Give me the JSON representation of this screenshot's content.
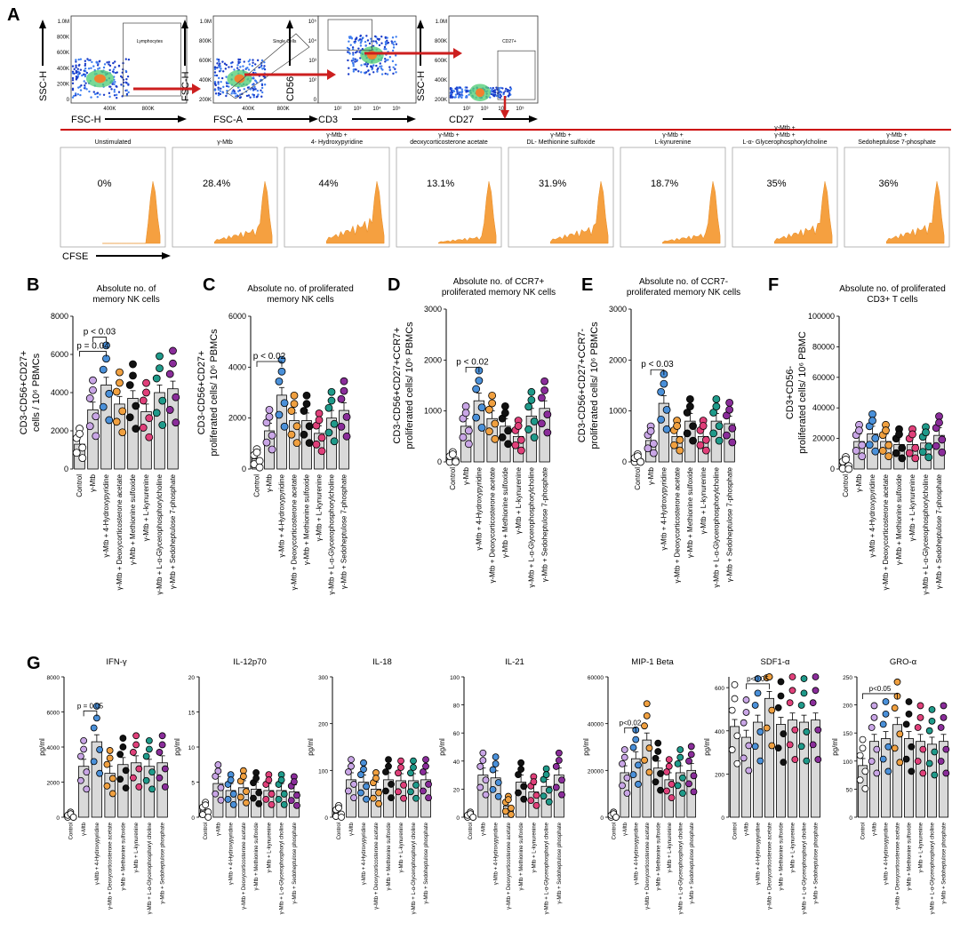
{
  "panel_letters": [
    "A",
    "B",
    "C",
    "D",
    "E",
    "F",
    "G"
  ],
  "colors": {
    "control": "#ffffff",
    "ymtb": "#c9a6e6",
    "hydroxypyridine": "#4a90d9",
    "deoxycort": "#f0a040",
    "methionine": "#111111",
    "kynurenine": "#e0407a",
    "glycero": "#1f9a8a",
    "sedo": "#8a2d9a",
    "bar": "#d9d9d9",
    "histogram": "#f5a040",
    "redline": "#cc0000",
    "arrow": "#cc1f1f"
  },
  "flow": {
    "gates": [
      {
        "ylabel": "SSC-H",
        "xlabel": "FSC-H",
        "gate": "Lymphocytes",
        "yticks": [
          "1.0M",
          "800K",
          "600K",
          "400K",
          "200K",
          "0"
        ],
        "xticks": [
          "400K",
          "800K"
        ]
      },
      {
        "ylabel": "FSC-H",
        "xlabel": "FSC-A",
        "gate": "Single Cells",
        "yticks": [
          "1.0M",
          "800K",
          "600K",
          "400K",
          "200K"
        ],
        "xticks": [
          "400K",
          "800K"
        ]
      },
      {
        "ylabel": "CD56",
        "xlabel": "CD3",
        "gate": "",
        "yticks": [
          "10⁵",
          "10⁴",
          "10³",
          "10²",
          "0"
        ],
        "xticks": [
          "10²",
          "10³",
          "10⁴",
          "10⁵"
        ]
      },
      {
        "ylabel": "SSC-H",
        "xlabel": "CD27",
        "gate": "CD27+",
        "yticks": [
          "1.0M",
          "800K",
          "600K",
          "400K",
          "200K"
        ],
        "xticks": [
          "10²",
          "10³",
          "10⁴",
          "10⁵"
        ]
      }
    ],
    "histograms": [
      {
        "title": "Unstimulated",
        "pct": "0%"
      },
      {
        "title": "γ-Mtb",
        "pct": "28.4%"
      },
      {
        "title": "γ-Mtb + 4- Hydroxypyridine",
        "pct": "44%"
      },
      {
        "title": "γ-Mtb + deoxycorticosterone acetate",
        "pct": "13.1%"
      },
      {
        "title": "γ-Mtb + DL- Methionine sulfoxide",
        "pct": "31.9%"
      },
      {
        "title": "γ-Mtb + L-kynurenine",
        "pct": "18.7%"
      },
      {
        "title": "γ-Mtb +γ-Mtb + L-α- Glycerophosphorylcholine",
        "pct": "35%"
      },
      {
        "title": "γ-Mtb + Sedoheptulose 7-phosphate",
        "pct": "36%"
      }
    ],
    "cfse_label": "CFSE"
  },
  "chart_data": [
    {
      "type": "bar",
      "panel": "B",
      "title": "Absolute no. of memory NK cells",
      "ylabel": "CD3-CD56+CD27+ cells / 10⁶ PBMCs",
      "ylim": [
        0,
        8000
      ],
      "yticks": [
        0,
        2000,
        4000,
        6000,
        8000
      ],
      "categories": [
        "Control",
        "γ-Mtb",
        "γ-Mtb + 4-Hydroxypyridine",
        "γ-Mtb + Deoxycorticosterone acetate",
        "γ-Mtb + Methionine sulfoxide",
        "γ-Mtb + L-kynurenine",
        "γ-Mtb + L-α-Glycerophosphorylcholine",
        "γ-Mtb + Sedoheptulose 7-phosphate"
      ],
      "values": [
        1300,
        3100,
        4400,
        3400,
        3700,
        3000,
        4000,
        4200
      ],
      "annotations": [
        {
          "text": "p = 0.04",
          "from": 0,
          "to": 2
        },
        {
          "text": "p < 0.03",
          "from": 1,
          "to": 2
        }
      ]
    },
    {
      "type": "bar",
      "panel": "C",
      "title": "Absolute no. of proliferated memory NK cells",
      "ylabel": "CD3-CD56+CD27+ proliferated cells/ 10⁶ PBMCs",
      "ylim": [
        0,
        6000
      ],
      "yticks": [
        0,
        2000,
        4000,
        6000
      ],
      "categories": [
        "Control",
        "γ-Mtb",
        "γ-Mtb + 4-Hydroxypyridine",
        "γ-Mtb + Deoxycorticosterone acetate",
        "γ-Mtb + Methionine sulfoxide",
        "γ-Mtb + L-kynurenine",
        "γ-Mtb + L-α-Glycerophosphorylcholine",
        "γ-Mtb + Sedoheptulose 7-phosphate"
      ],
      "values": [
        400,
        1500,
        2900,
        1900,
        1900,
        1400,
        2000,
        2300
      ],
      "annotations": [
        {
          "text": "p < 0.02",
          "from": 0,
          "to": 2
        }
      ]
    },
    {
      "type": "bar",
      "panel": "D",
      "title": "Absolute no. of CCR7+ proliferated memory NK cells",
      "ylabel": "CD3-CD56+CD27+CCR7+ proliferated cells/ 10⁶ PBMCs",
      "ylim": [
        0,
        3000
      ],
      "yticks": [
        0,
        1000,
        2000,
        3000
      ],
      "categories": [
        "Control",
        "γ-Mtb",
        "γ-Mtb + 4-Hydroxypyridine",
        "γ-Mtb + Deoxycorticosterone acetate",
        "γ-Mtb + Methionine sulfoxide",
        "γ-Mtb + L-kynurenine",
        "γ-Mtb + L-α-Glycerophosphorylcholine",
        "γ-Mtb + Sedoheptulose 7-phosphate"
      ],
      "values": [
        60,
        700,
        1200,
        850,
        700,
        500,
        900,
        1050
      ],
      "annotations": [
        {
          "text": "p < 0.02",
          "from": 1,
          "to": 2
        }
      ]
    },
    {
      "type": "bar",
      "panel": "E",
      "title": "Absolute no. of CCR7- proliferated memory NK cells",
      "ylabel": "CD3-CD56+CD27+CCR7- proliferated cells/ 10⁶ PBMCs",
      "ylim": [
        0,
        3000
      ],
      "yticks": [
        0,
        1000,
        2000,
        3000
      ],
      "categories": [
        "Control",
        "γ-Mtb",
        "γ-Mtb + 4-Hydroxypyridine",
        "γ-Mtb + Deoxycorticosterone acetate",
        "γ-Mtb + Methionine sulfoxide",
        "γ-Mtb + L-kynurenine",
        "γ-Mtb + L-α-Glycerophosphorylcholine",
        "γ-Mtb + Sedoheptulose 7-phosphate"
      ],
      "values": [
        30,
        420,
        1150,
        500,
        800,
        500,
        800,
        750
      ],
      "annotations": [
        {
          "text": "p < 0.03",
          "from": 1,
          "to": 2
        }
      ]
    },
    {
      "type": "bar",
      "panel": "F",
      "title": "Absolute no. of proliferated CD3+ T cells",
      "ylabel": "CD3+CD56- proliferated cells/ 10⁶ PBMC",
      "ylim": [
        0,
        100000
      ],
      "yticks": [
        0,
        20000,
        40000,
        60000,
        80000,
        100000
      ],
      "categories": [
        "Control",
        "γ-Mtb",
        "γ-Mtb + 4-Hydroxypyridine",
        "γ-Mtb + Deoxycorticosterone acetate",
        "γ-Mtb + Methionine sulfoxide",
        "γ-Mtb + L-kynurenine",
        "γ-Mtb + L-α-Glycerophosphorylcholine",
        "γ-Mtb + Sedoheptulose 7-phosphate"
      ],
      "values": [
        3000,
        18000,
        23000,
        18000,
        16000,
        16000,
        17000,
        22000
      ],
      "annotations": []
    },
    {
      "type": "bar",
      "panel": "G",
      "title": "IFN-γ",
      "ylabel": "pg/ml",
      "ylim": [
        0,
        8000
      ],
      "yticks": [
        0,
        2000,
        4000,
        6000,
        8000
      ],
      "categories": [
        "Control",
        "γ-Mtb",
        "γ-Mtb + 4-Hydroxypyridine",
        "γ-Mtb + Deoxycorticosterone acetate",
        "γ-Mtb + Methionine sulfoxide",
        "γ-Mtb + L-kynurenine",
        "γ-Mtb + L-α-Glycerophosphoryl choline",
        "γ-Mtb + Sedoheptulose phosphate"
      ],
      "values": [
        0,
        2900,
        4300,
        2500,
        3000,
        3100,
        2900,
        3100
      ],
      "annotations": [
        {
          "text": "p = 0.05",
          "from": 1,
          "to": 2
        }
      ]
    },
    {
      "type": "bar",
      "panel": "G",
      "title": "IL-12p70",
      "ylabel": "pg/ml",
      "ylim": [
        0,
        20
      ],
      "yticks": [
        0,
        5,
        10,
        15,
        20
      ],
      "categories": [
        "Control",
        "γ-Mtb",
        "γ-Mtb + 4-Hydroxypyridine",
        "γ-Mtb + Deoxycorticosterone acetate",
        "γ-Mtb + Methionine sulfoxide",
        "γ-Mtb + L-kynurenine",
        "γ-Mtb + L-α-Glycerophosphoryl choline",
        "γ-Mtb + Sedoheptulose phosphate"
      ],
      "values": [
        1,
        4.8,
        3.8,
        4.2,
        4.0,
        3.8,
        3.8,
        3.6
      ],
      "annotations": []
    },
    {
      "type": "bar",
      "panel": "G",
      "title": "IL-18",
      "ylabel": "pg/ml",
      "ylim": [
        0,
        300
      ],
      "yticks": [
        0,
        100,
        200,
        300
      ],
      "categories": [
        "Control",
        "γ-Mtb",
        "γ-Mtb + 4-Hydroxypyridine",
        "γ-Mtb + Deoxycorticosterone acetate",
        "γ-Mtb + Methionine sulfoxide",
        "γ-Mtb + L-kynurenine",
        "γ-Mtb + L-α-Glycerophosphoryl choline",
        "γ-Mtb + Sedoheptulose phosphate"
      ],
      "values": [
        10,
        80,
        75,
        60,
        80,
        78,
        78,
        80
      ],
      "annotations": []
    },
    {
      "type": "bar",
      "panel": "G",
      "title": "IL-21",
      "ylabel": "pg/ml",
      "ylim": [
        0,
        100
      ],
      "yticks": [
        0,
        20,
        40,
        60,
        80,
        100
      ],
      "categories": [
        "Control",
        "γ-Mtb",
        "γ-Mtb + 4-Hydroxypyridine",
        "γ-Mtb + Deoxycorticosterone acetate",
        "γ-Mtb + Methionine sulfoxide",
        "γ-Mtb + L-kynurenine",
        "γ-Mtb + L-α-Glycerophosphoryl choline",
        "γ-Mtb + Sedoheptulose phosphate"
      ],
      "values": [
        0,
        30,
        28,
        8,
        25,
        18,
        22,
        30
      ],
      "annotations": []
    },
    {
      "type": "bar",
      "panel": "G",
      "title": "MIP-1 Beta",
      "ylabel": "pg/ml",
      "ylim": [
        0,
        60000
      ],
      "yticks": [
        0,
        20000,
        40000,
        60000
      ],
      "categories": [
        "Control",
        "γ-Mtb",
        "γ-Mtb + 4-Hydroxypyridine",
        "γ-Mtb + Deoxycorticosterone acetate",
        "γ-Mtb + Methionine sulfoxide",
        "γ-Mtb + L-kynurenine",
        "γ-Mtb + L-α-Glycerophosphoryl choline",
        "γ-Mtb + Sedoheptulose phosphate"
      ],
      "values": [
        0,
        19000,
        25000,
        33000,
        21000,
        16000,
        19000,
        20000
      ],
      "annotations": [
        {
          "text": "p<0.02",
          "from": 1,
          "to": 2
        }
      ]
    },
    {
      "type": "bar",
      "panel": "G",
      "title": "SDF1-α",
      "ylabel": "pg/ml",
      "ylim": [
        0,
        650
      ],
      "yticks": [
        0,
        200,
        400,
        600
      ],
      "categories": [
        "Control",
        "γ-Mtb",
        "γ-Mtb + 4-Hydroxypyridine",
        "γ-Mtb + Deoxycorticosterone acetate",
        "γ-Mtb + Methionine sulfoxide",
        "γ-Mtb + L-kynurenine",
        "γ-Mtb + L-α-Glycerophosphoryl choline",
        "γ-Mtb + Sedoheptulose phosphate"
      ],
      "values": [
        420,
        370,
        440,
        550,
        430,
        450,
        440,
        450
      ],
      "annotations": [
        {
          "text": "p<0.05",
          "from": 1,
          "to": 3
        }
      ]
    },
    {
      "type": "bar",
      "panel": "G",
      "title": "GRO-α",
      "ylabel": "pg/ml",
      "ylim": [
        0,
        250
      ],
      "yticks": [
        0,
        50,
        100,
        150,
        200,
        250
      ],
      "categories": [
        "Control",
        "γ-Mtb",
        "γ-Mtb + 4-Hydroxypyridine",
        "γ-Mtb + Deoxycorticosterone acetate",
        "γ-Mtb + Methionine sulfoxide",
        "γ-Mtb + L-kynurenine",
        "γ-Mtb + L-α-Glycerophosphoryl choline",
        "γ-Mtb + Sedoheptulose phosphate"
      ],
      "values": [
        92,
        135,
        140,
        165,
        140,
        135,
        130,
        135
      ],
      "annotations": [
        {
          "text": "p<0.05",
          "from": 0,
          "to": 3
        }
      ]
    }
  ]
}
